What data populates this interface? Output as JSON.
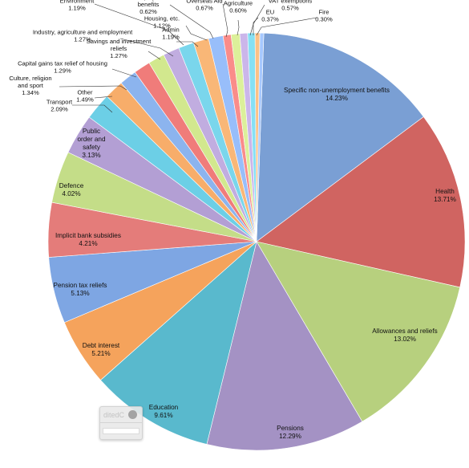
{
  "chart_data": {
    "type": "pie",
    "title": "",
    "slices": [
      {
        "label": "Specific non-unemployment benefits",
        "value": 14.23,
        "display": "14.23%",
        "color": "#7a9fd4"
      },
      {
        "label": "Health",
        "value": 13.71,
        "display": "13.71%",
        "color": "#d06461"
      },
      {
        "label": "Allowances and reliefs",
        "value": 13.02,
        "display": "13.02%",
        "color": "#b7d07e"
      },
      {
        "label": "Pensions",
        "value": 12.29,
        "display": "12.29%",
        "color": "#a492c4"
      },
      {
        "label": "Education",
        "value": 9.61,
        "display": "9.61%",
        "color": "#59b9cd"
      },
      {
        "label": "Debt interest",
        "value": 5.21,
        "display": "5.21%",
        "color": "#f5a35c"
      },
      {
        "label": "Pension tax reliefs",
        "value": 5.13,
        "display": "5.13%",
        "color": "#7ea6e3"
      },
      {
        "label": "Implicit bank subsidies",
        "value": 4.21,
        "display": "4.21%",
        "color": "#e47c7a"
      },
      {
        "label": "Defence",
        "value": 4.02,
        "display": "4.02%",
        "color": "#c4dd88"
      },
      {
        "label": "Public order and safety",
        "value": 3.13,
        "display": "3.13%",
        "color": "#b39fd4"
      },
      {
        "label": "Transport",
        "value": 2.09,
        "display": "2.09%",
        "color": "#6ccfe6"
      },
      {
        "label": "Other",
        "value": 1.49,
        "display": "1.49%",
        "color": "#f7ad6a"
      },
      {
        "label": "Culture, religion and sport",
        "value": 1.34,
        "display": "1.34%",
        "color": "#8cb4ee"
      },
      {
        "label": "Capital gains tax relief of housing",
        "value": 1.29,
        "display": "1.29%",
        "color": "#f07c7a"
      },
      {
        "label": "Savings and investment reliefs",
        "value": 1.27,
        "display": "1.27%",
        "color": "#d2e88e"
      },
      {
        "label": "Industry, agriculture and employment",
        "value": 1.27,
        "display": "1.27%",
        "color": "#c1ade0"
      },
      {
        "label": "Environment",
        "value": 1.19,
        "display": "1.19%",
        "color": "#7ad6ec"
      },
      {
        "label": "Admin",
        "value": 1.19,
        "display": "1.19%",
        "color": "#f9b777"
      },
      {
        "label": "Housing, etc.",
        "value": 1.12,
        "display": "1.12%",
        "color": "#98befa"
      },
      {
        "label": "Unemployment benefits",
        "value": 0.62,
        "display": "0.62%",
        "color": "#fa8c8a"
      },
      {
        "label": "Overseas Aid",
        "value": 0.67,
        "display": "0.67%",
        "color": "#dcf09a"
      },
      {
        "label": "Agriculture",
        "value": 0.6,
        "display": "0.60%",
        "color": "#cbb6ea"
      },
      {
        "label": "VAT exemptions",
        "value": 0.57,
        "display": "0.57%",
        "color": "#86e0f4"
      },
      {
        "label": "EU",
        "value": 0.37,
        "display": "0.37%",
        "color": "#fcc186"
      },
      {
        "label": "Fire",
        "value": 0.3,
        "display": "0.30%",
        "color": "#a6c8ff"
      }
    ]
  },
  "overlay": {
    "text": "ditedC"
  }
}
